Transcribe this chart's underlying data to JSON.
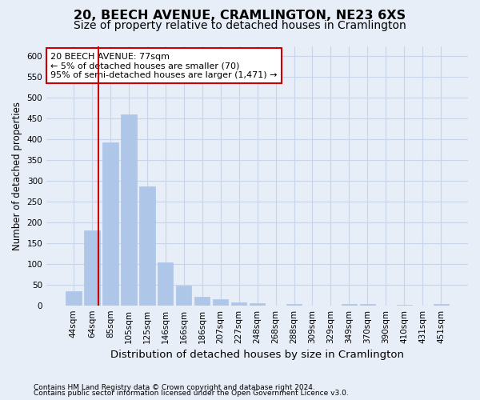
{
  "title": "20, BEECH AVENUE, CRAMLINGTON, NE23 6XS",
  "subtitle": "Size of property relative to detached houses in Cramlington",
  "xlabel": "Distribution of detached houses by size in Cramlington",
  "ylabel": "Number of detached properties",
  "footer1": "Contains HM Land Registry data © Crown copyright and database right 2024.",
  "footer2": "Contains public sector information licensed under the Open Government Licence v3.0.",
  "categories": [
    "44sqm",
    "64sqm",
    "85sqm",
    "105sqm",
    "125sqm",
    "146sqm",
    "166sqm",
    "186sqm",
    "207sqm",
    "227sqm",
    "248sqm",
    "268sqm",
    "288sqm",
    "309sqm",
    "329sqm",
    "349sqm",
    "370sqm",
    "390sqm",
    "410sqm",
    "431sqm",
    "451sqm"
  ],
  "values": [
    35,
    180,
    393,
    460,
    287,
    103,
    48,
    20,
    15,
    8,
    5,
    0,
    3,
    0,
    0,
    3,
    3,
    0,
    2,
    0,
    3
  ],
  "bar_color": "#aec6e8",
  "bar_edgecolor": "#aec6e8",
  "vline_color": "#cc0000",
  "vline_x": 1.35,
  "annotation_line1": "20 BEECH AVENUE: 77sqm",
  "annotation_line2": "← 5% of detached houses are smaller (70)",
  "annotation_line3": "95% of semi-detached houses are larger (1,471) →",
  "annotation_box_facecolor": "#ffffff",
  "annotation_box_edgecolor": "#cc0000",
  "ylim": [
    0,
    625
  ],
  "yticks": [
    0,
    50,
    100,
    150,
    200,
    250,
    300,
    350,
    400,
    450,
    500,
    550,
    600
  ],
  "grid_color": "#c8d4e8",
  "background_color": "#e8eef8",
  "title_fontsize": 11.5,
  "subtitle_fontsize": 10,
  "xlabel_fontsize": 9.5,
  "ylabel_fontsize": 8.5,
  "tick_fontsize": 7.5,
  "annotation_fontsize": 8,
  "footer_fontsize": 6.5
}
